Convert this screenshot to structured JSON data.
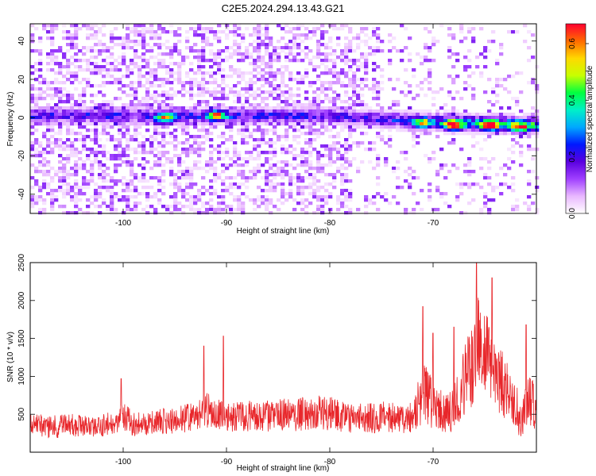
{
  "figure": {
    "title": "C2E5.2024.294.13.43.G21"
  },
  "chart_data": [
    {
      "type": "heatmap",
      "xlabel": "Height of straight line (km)",
      "ylabel": "Frequency (Hz)",
      "xlim": [
        -109,
        -60
      ],
      "ylim": [
        -50,
        49
      ],
      "xticks": [
        -100,
        -90,
        -80,
        -70
      ],
      "yticks": [
        -40,
        -20,
        0,
        20,
        40
      ],
      "colorbar": {
        "label": "Normalized spectral amplitude",
        "range": [
          0.0,
          0.67
        ],
        "ticks": [
          0.0,
          0.2,
          0.4,
          0.6
        ],
        "colors": [
          "#ffffff",
          "#e9b8ff",
          "#a040ff",
          "#5a00e0",
          "#0018ff",
          "#00a8ff",
          "#00f0c8",
          "#00ff40",
          "#c8ff00",
          "#ffd800",
          "#ff6a00",
          "#ff0030"
        ]
      },
      "features": {
        "band_center_hz": [
          {
            "km": -109,
            "hz": 1
          },
          {
            "km": -100,
            "hz": 1
          },
          {
            "km": -90,
            "hz": 1
          },
          {
            "km": -80,
            "hz": 1
          },
          {
            "km": -75,
            "hz": -1
          },
          {
            "km": -70,
            "hz": -2
          },
          {
            "km": -60,
            "hz": -4
          }
        ],
        "band_half_width_hz": 3,
        "peaks": [
          {
            "km": -68,
            "hz": -4,
            "amp": 0.65
          },
          {
            "km": -64.5,
            "hz": -4,
            "amp": 0.63
          },
          {
            "km": -61.5,
            "hz": -5,
            "amp": 0.45
          },
          {
            "km": -91,
            "hz": 1,
            "amp": 0.5
          },
          {
            "km": -96,
            "hz": 0,
            "amp": 0.42
          },
          {
            "km": -71,
            "hz": -3,
            "amp": 0.42
          }
        ]
      }
    },
    {
      "type": "line",
      "xlabel": "Height of straight line (km)",
      "ylabel": "SNR (10 * v/v)",
      "xlim": [
        -109,
        -60
      ],
      "ylim": [
        0,
        2500
      ],
      "xticks": [
        -100,
        -90,
        -80,
        -70
      ],
      "yticks": [
        500,
        1000,
        1500,
        2000,
        2500
      ],
      "series": [
        {
          "color": "#e8262a",
          "x": [
            -109,
            -107,
            -105,
            -103,
            -101,
            -100,
            -99,
            -97,
            -95,
            -93,
            -92,
            -91,
            -90,
            -89,
            -87,
            -85,
            -83,
            -81,
            -80,
            -79,
            -77,
            -75,
            -73,
            -72,
            -71.5,
            -71,
            -70,
            -69,
            -68,
            -67,
            -66,
            -65.5,
            -65,
            -64,
            -63,
            -62,
            -61.5,
            -61,
            -60
          ],
          "y": [
            380,
            330,
            360,
            320,
            400,
            480,
            360,
            400,
            420,
            470,
            560,
            500,
            440,
            470,
            480,
            480,
            500,
            520,
            520,
            480,
            440,
            460,
            440,
            480,
            620,
            780,
            650,
            520,
            560,
            900,
            1200,
            1550,
            1350,
            1050,
            850,
            650,
            350,
            700,
            600
          ],
          "spread": [
            140,
            160,
            150,
            140,
            170,
            190,
            160,
            170,
            180,
            190,
            260,
            220,
            190,
            200,
            210,
            220,
            220,
            230,
            230,
            210,
            200,
            210,
            200,
            220,
            300,
            420,
            340,
            260,
            300,
            480,
            580,
            600,
            560,
            480,
            420,
            320,
            200,
            380,
            300
          ],
          "max_points": [
            {
              "x": -100.2,
              "y": 970
            },
            {
              "x": -92.2,
              "y": 1400
            },
            {
              "x": -90.3,
              "y": 1530
            },
            {
              "x": -71.0,
              "y": 1920
            },
            {
              "x": -70.0,
              "y": 1570
            },
            {
              "x": -68.0,
              "y": 1650
            },
            {
              "x": -65.8,
              "y": 2500
            },
            {
              "x": -64.3,
              "y": 2300
            },
            {
              "x": -61.0,
              "y": 1680
            }
          ]
        }
      ]
    }
  ]
}
